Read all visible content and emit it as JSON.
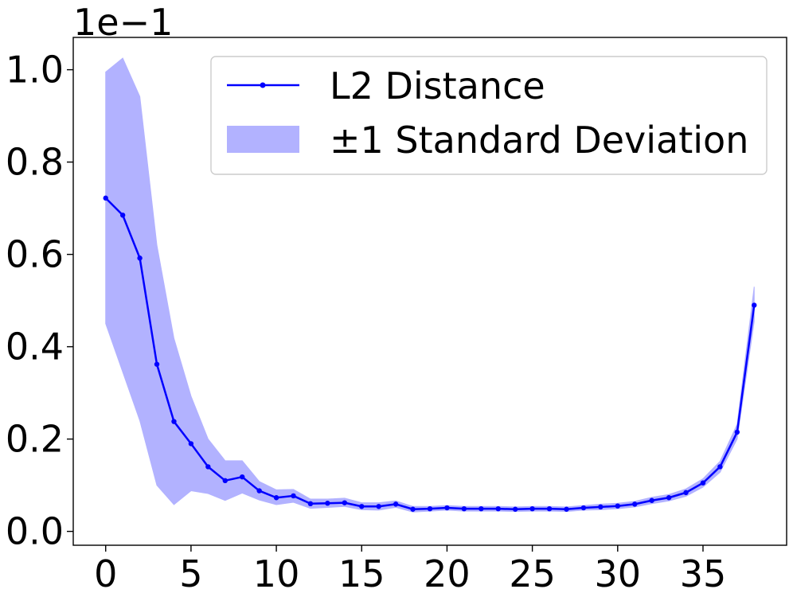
{
  "chart_data": {
    "type": "line",
    "title": "",
    "xlabel": "",
    "ylabel": "",
    "y_offset_label": "1e−1",
    "xlim": [
      -1.9,
      39.9
    ],
    "ylim": [
      -0.03,
      1.07
    ],
    "xticks": [
      0,
      5,
      10,
      15,
      20,
      25,
      30,
      35
    ],
    "xtick_labels": [
      "0",
      "5",
      "10",
      "15",
      "20",
      "25",
      "30",
      "35"
    ],
    "yticks": [
      0.0,
      0.2,
      0.4,
      0.6,
      0.8,
      1.0
    ],
    "ytick_labels": [
      "0.0",
      "0.2",
      "0.4",
      "0.6",
      "0.8",
      "1.0"
    ],
    "grid": false,
    "legend_position": "top-right",
    "series": [
      {
        "name": "L2 Distance",
        "color": "#0000ff",
        "marker": "dot",
        "x": [
          0,
          1,
          2,
          3,
          4,
          5,
          6,
          7,
          8,
          9,
          10,
          11,
          12,
          13,
          14,
          15,
          16,
          17,
          18,
          19,
          20,
          21,
          22,
          23,
          24,
          25,
          26,
          27,
          28,
          29,
          30,
          31,
          32,
          33,
          34,
          35,
          36,
          37,
          38
        ],
        "values": [
          0.722,
          0.685,
          0.592,
          0.362,
          0.238,
          0.19,
          0.14,
          0.11,
          0.118,
          0.088,
          0.073,
          0.077,
          0.06,
          0.061,
          0.062,
          0.054,
          0.054,
          0.059,
          0.048,
          0.049,
          0.051,
          0.049,
          0.049,
          0.049,
          0.048,
          0.049,
          0.049,
          0.048,
          0.051,
          0.053,
          0.055,
          0.059,
          0.067,
          0.073,
          0.084,
          0.105,
          0.14,
          0.215,
          0.49
        ]
      }
    ],
    "band": {
      "name": "±1 Standard Deviation",
      "color": "#b2b2ff",
      "lower": [
        0.45,
        0.345,
        0.24,
        0.1,
        0.058,
        0.088,
        0.082,
        0.067,
        0.083,
        0.068,
        0.058,
        0.063,
        0.05,
        0.052,
        0.054,
        0.047,
        0.046,
        0.052,
        0.042,
        0.044,
        0.046,
        0.044,
        0.044,
        0.044,
        0.043,
        0.044,
        0.044,
        0.043,
        0.046,
        0.047,
        0.049,
        0.053,
        0.06,
        0.066,
        0.076,
        0.096,
        0.128,
        0.2,
        0.455
      ],
      "upper": [
        0.995,
        1.025,
        0.942,
        0.62,
        0.418,
        0.293,
        0.2,
        0.153,
        0.153,
        0.108,
        0.09,
        0.091,
        0.07,
        0.07,
        0.072,
        0.062,
        0.062,
        0.066,
        0.054,
        0.054,
        0.056,
        0.054,
        0.054,
        0.054,
        0.053,
        0.054,
        0.054,
        0.053,
        0.056,
        0.059,
        0.061,
        0.065,
        0.074,
        0.08,
        0.092,
        0.114,
        0.152,
        0.232,
        0.53
      ]
    }
  }
}
